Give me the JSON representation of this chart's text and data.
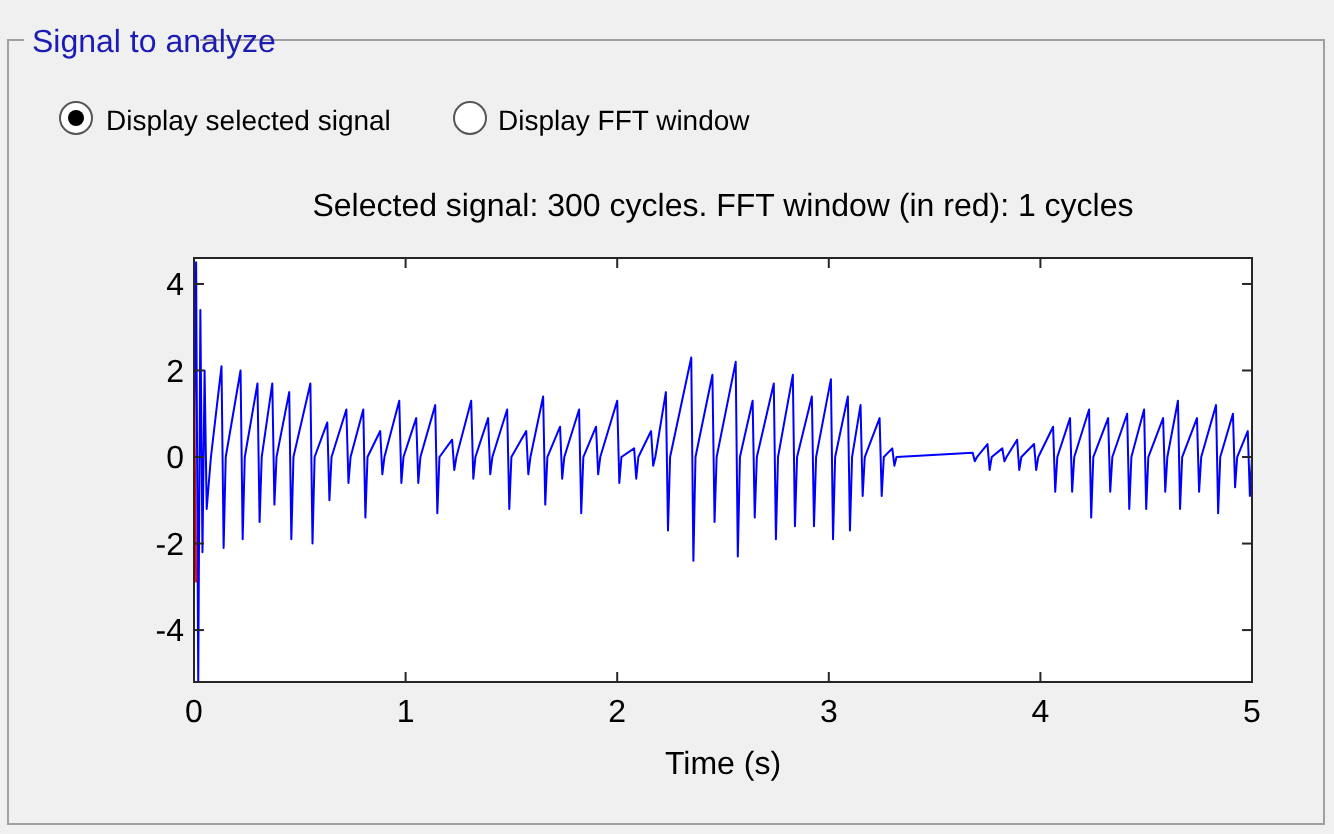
{
  "chart_data": {
    "type": "line",
    "title": "Selected signal: 300 cycles. FFT window (in red): 1 cycles",
    "xlabel": "Time (s)",
    "annotations": [
      "Signal to analyze",
      "Display selected signal",
      "Display FFT window"
    ],
    "xlim": [
      0,
      5
    ],
    "xticks": [
      0,
      1,
      2,
      3,
      4,
      5
    ],
    "ylim": [
      -5.2,
      4.6
    ],
    "yticks": [
      -4,
      -2,
      0,
      2,
      4
    ],
    "grid": false,
    "marker": "none",
    "line_style": "solid",
    "series": [
      {
        "color": "#0000ff",
        "x": [
          0,
          0.01,
          0.02,
          0.03,
          0.04,
          0.05,
          0.06,
          0.08,
          0.13,
          0.14,
          0.15,
          0.22,
          0.23,
          0.24,
          0.3,
          0.31,
          0.32,
          0.37,
          0.38,
          0.39,
          0.45,
          0.46,
          0.47,
          0.55,
          0.56,
          0.57,
          0.63,
          0.64,
          0.65,
          0.72,
          0.73,
          0.74,
          0.8,
          0.81,
          0.82,
          0.88,
          0.89,
          0.9,
          0.97,
          0.98,
          0.99,
          1.05,
          1.06,
          1.07,
          1.14,
          1.15,
          1.16,
          1.22,
          1.23,
          1.24,
          1.31,
          1.32,
          1.33,
          1.39,
          1.4,
          1.41,
          1.48,
          1.49,
          1.5,
          1.57,
          1.58,
          1.59,
          1.65,
          1.66,
          1.67,
          1.73,
          1.74,
          1.75,
          1.82,
          1.83,
          1.84,
          1.9,
          1.91,
          1.92,
          2.0,
          2.01,
          2.02,
          2.08,
          2.09,
          2.1,
          2.16,
          2.17,
          2.18,
          2.23,
          2.24,
          2.25,
          2.35,
          2.36,
          2.37,
          2.45,
          2.46,
          2.47,
          2.56,
          2.57,
          2.58,
          2.64,
          2.65,
          2.66,
          2.74,
          2.75,
          2.76,
          2.83,
          2.84,
          2.85,
          2.92,
          2.93,
          2.94,
          3.01,
          3.02,
          3.03,
          3.09,
          3.1,
          3.11,
          3.15,
          3.16,
          3.17,
          3.24,
          3.25,
          3.26,
          3.3,
          3.31,
          3.32,
          3.68,
          3.69,
          3.7,
          3.75,
          3.76,
          3.77,
          3.82,
          3.83,
          3.84,
          3.89,
          3.9,
          3.91,
          3.97,
          3.98,
          3.99,
          4.06,
          4.07,
          4.08,
          4.14,
          4.15,
          4.16,
          4.23,
          4.24,
          4.25,
          4.32,
          4.33,
          4.34,
          4.41,
          4.42,
          4.43,
          4.49,
          4.5,
          4.51,
          4.58,
          4.59,
          4.6,
          4.65,
          4.66,
          4.67,
          4.74,
          4.75,
          4.76,
          4.83,
          4.84,
          4.85,
          4.91,
          4.92,
          4.93,
          4.98,
          4.99,
          5
        ],
        "values": [
          0,
          4.5,
          -5.2,
          3.4,
          -2.2,
          2.0,
          -1.2,
          0,
          2.1,
          -2.1,
          0,
          2.0,
          -1.9,
          0,
          1.7,
          -1.5,
          0,
          1.7,
          -1.1,
          0,
          1.5,
          -1.9,
          0,
          1.7,
          -2.0,
          0,
          0.8,
          -1.0,
          0,
          1.1,
          -0.6,
          0,
          1.1,
          -1.4,
          0,
          0.6,
          -0.4,
          0,
          1.3,
          -0.6,
          0,
          0.9,
          -0.6,
          0,
          1.2,
          -1.3,
          0,
          0.4,
          -0.3,
          0,
          1.3,
          -0.5,
          0,
          0.9,
          -0.4,
          0,
          1.1,
          -1.2,
          0,
          0.6,
          -0.4,
          0,
          1.4,
          -1.1,
          0,
          0.7,
          -0.5,
          0,
          1.1,
          -1.3,
          0,
          0.7,
          -0.4,
          0,
          1.3,
          -0.6,
          0,
          0.2,
          -0.5,
          0,
          0.6,
          -0.2,
          0,
          1.5,
          -1.7,
          0,
          2.3,
          -2.4,
          0,
          1.9,
          -1.5,
          0,
          2.2,
          -2.3,
          0,
          1.3,
          -1.4,
          0,
          1.7,
          -1.9,
          0,
          1.9,
          -1.6,
          0,
          1.4,
          -1.6,
          0,
          1.8,
          -1.9,
          0,
          1.4,
          -1.7,
          0,
          1.2,
          -0.9,
          0,
          0.9,
          -0.9,
          0,
          0.2,
          -0.2,
          0,
          0.1,
          -0.1,
          0,
          0.3,
          -0.3,
          0,
          0.2,
          -0.1,
          0,
          0.4,
          -0.3,
          0,
          0.3,
          -0.3,
          0,
          0.7,
          -0.8,
          0,
          0.9,
          -0.8,
          0,
          1.1,
          -1.4,
          0,
          0.9,
          -0.8,
          0,
          1.0,
          -1.2,
          0,
          1.1,
          -1.2,
          0,
          0.9,
          -0.8,
          0,
          1.3,
          -1.2,
          0,
          0.9,
          -0.8,
          0,
          1.2,
          -1.3,
          0,
          1.0,
          -0.7,
          0,
          0.6,
          -0.9,
          0
        ]
      },
      {
        "color": "#ff0000",
        "x": [
          0,
          0.01
        ],
        "values": [
          2.0,
          -2.9
        ]
      }
    ]
  }
}
